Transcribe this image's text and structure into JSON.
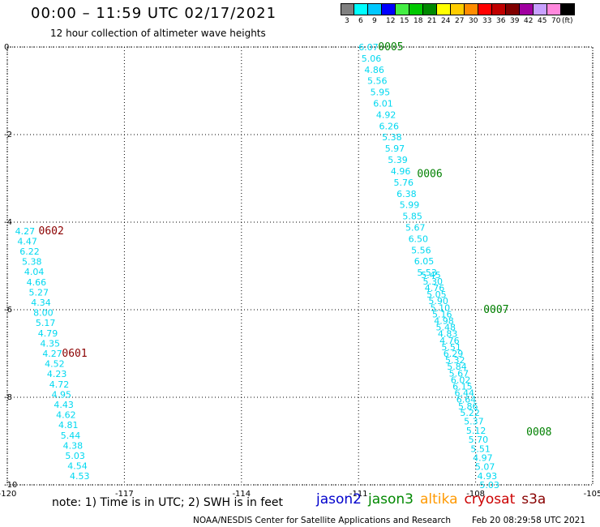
{
  "header": {
    "title": "00:00 – 11:59 UTC 02/17/2021",
    "subtitle": "12 hour collection of altimeter wave heights"
  },
  "color_scale": {
    "unit_label": "(ft)",
    "bins": [
      {
        "label": "3",
        "color": "#808080"
      },
      {
        "label": "6",
        "color": "#00ffff"
      },
      {
        "label": "9",
        "color": "#00c8ff"
      },
      {
        "label": "12",
        "color": "#0000ff"
      },
      {
        "label": "15",
        "color": "#44ee44"
      },
      {
        "label": "18",
        "color": "#00c800"
      },
      {
        "label": "21",
        "color": "#008800"
      },
      {
        "label": "24",
        "color": "#ffff00"
      },
      {
        "label": "27",
        "color": "#ffcc00"
      },
      {
        "label": "30",
        "color": "#ff8c00"
      },
      {
        "label": "33",
        "color": "#ff0000"
      },
      {
        "label": "36",
        "color": "#c00000"
      },
      {
        "label": "39",
        "color": "#800000"
      },
      {
        "label": "42",
        "color": "#a000a0"
      },
      {
        "label": "45",
        "color": "#c8a0ff"
      },
      {
        "label": "70",
        "color": "#ff88dd"
      },
      {
        "label": "",
        "color": "#000000"
      }
    ]
  },
  "map": {
    "x_ticks": [
      "-120",
      "-117",
      "-114",
      "-111",
      "-108",
      "-105"
    ],
    "x_values": [
      -120,
      -117,
      -114,
      -111,
      -108,
      -105
    ],
    "y_ticks": [
      "0",
      "-2",
      "-4",
      "-6",
      "-8",
      "-10"
    ],
    "y_values": [
      0,
      -2,
      -4,
      -6,
      -8,
      -10
    ],
    "value_color": "#00d8f0",
    "tracks": [
      {
        "label": "0602",
        "label_color": "#8b0000",
        "label_lon": -119.2,
        "label_lat": -4.2,
        "lon_start": -119.8,
        "lat_start": -4.2,
        "lon_end": -118.4,
        "lat_end": -9.8,
        "values": [
          "4.27",
          "4.47",
          "6.22",
          "5.38",
          "4.04",
          "4.66",
          "5.27",
          "4.34",
          "8.00",
          "5.17",
          "4.79",
          "4.35",
          "4.27",
          "4.52",
          "4.23",
          "4.72",
          "4.95",
          "4.43",
          "4.62",
          "4.81",
          "5.44",
          "4.38",
          "5.03",
          "4.54",
          "4.53"
        ]
      },
      {
        "label": "0601",
        "label_color": "#8b0000",
        "label_lon": -118.6,
        "label_lat": -7.0,
        "lon_start": null,
        "lat_start": null,
        "lon_end": null,
        "lat_end": null,
        "values": []
      },
      {
        "label": "0005",
        "label_color": "#008000",
        "label_lon": -110.5,
        "label_lat": 0.0,
        "lon_start": -111.0,
        "lat_start": 0.0,
        "lon_end": -109.5,
        "lat_end": -5.15,
        "values": [
          "6.07",
          "5.06",
          "4.86",
          "5.56",
          "5.95",
          "6.01",
          "4.92",
          "6.26",
          "5.38",
          "5.97",
          "5.39",
          "4.96",
          "5.76",
          "6.38",
          "5.99",
          "5.85",
          "5.67",
          "6.50",
          "5.56",
          "6.05",
          "5.53"
        ]
      },
      {
        "label": "0006",
        "label_color": "#008000",
        "label_lon": -109.5,
        "label_lat": -2.9,
        "lon_start": null,
        "lat_start": null,
        "lon_end": null,
        "lat_end": null,
        "values": []
      },
      {
        "label": "0007",
        "label_color": "#008000",
        "label_lon": -107.8,
        "label_lat": -6.0,
        "lon_start": -109.4,
        "lat_start": -5.2,
        "lon_end": -108.4,
        "lat_end": -8.35,
        "values": [
          "5.45",
          "5.30",
          "4.76",
          "5.05",
          "5.90",
          "5.10",
          "5.16",
          "4.98",
          "5.48",
          "4.83",
          "4.76",
          "5.51",
          "6.29",
          "5.32",
          "5.84",
          "5.67",
          "6.02",
          "6.15",
          "6.44",
          "6.64",
          "5.86",
          "5.22"
        ]
      },
      {
        "label": "0008",
        "label_color": "#008000",
        "label_lon": -106.7,
        "label_lat": -8.8,
        "lon_start": -108.3,
        "lat_start": -8.55,
        "lon_end": -107.9,
        "lat_end": -10.0,
        "values": [
          "5.37",
          "5.12",
          "5.70",
          "5.51",
          "4.97",
          "5.07",
          "4.93",
          "5.03"
        ]
      }
    ]
  },
  "notes": {
    "text": "note:  1) Time is in UTC;  2) SWH is in feet"
  },
  "missions": [
    {
      "name": "jason2",
      "color": "#0000cc"
    },
    {
      "name": "jason3",
      "color": "#008800"
    },
    {
      "name": "altika",
      "color": "#ff9900"
    },
    {
      "name": "cryosat",
      "color": "#cc0000"
    },
    {
      "name": "s3a",
      "color": "#880000"
    }
  ],
  "footer": {
    "credit": "NOAA/NESDIS Center for Satellite Applications and Research",
    "timestamp": "Feb 20 08:29:58 UTC 2021"
  }
}
